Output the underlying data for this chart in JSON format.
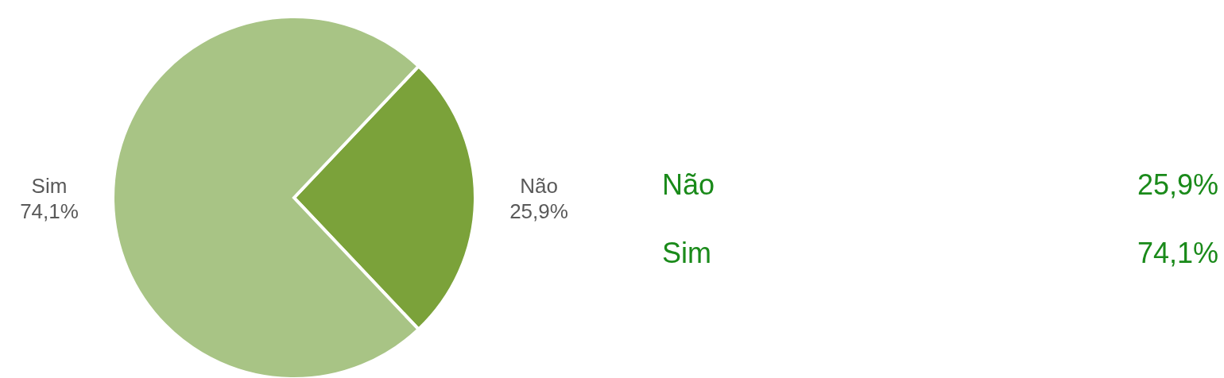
{
  "chart_data": {
    "type": "pie",
    "categories": [
      "Não",
      "Sim"
    ],
    "values": [
      25.9,
      74.1
    ],
    "colors": [
      "#7ba23a",
      "#a8c485"
    ],
    "value_labels": [
      "25,9%",
      "74,1%"
    ],
    "legend": false
  }
}
